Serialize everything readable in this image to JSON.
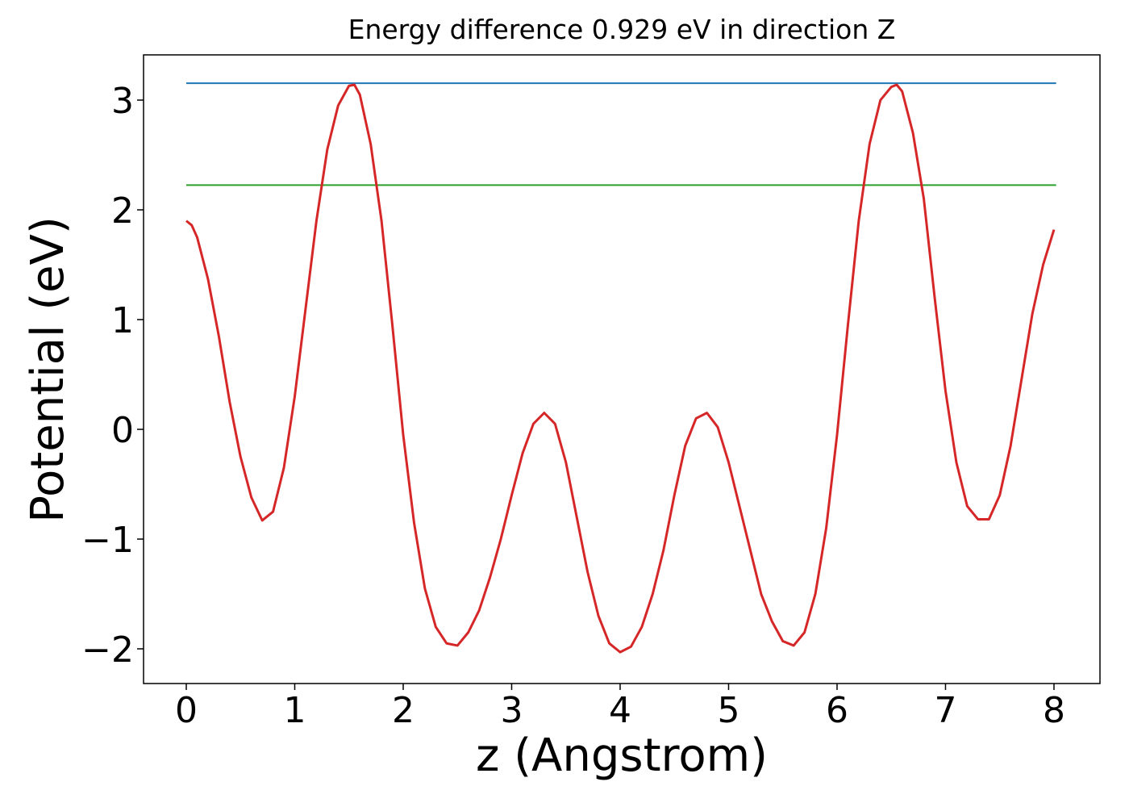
{
  "chart_data": {
    "type": "line",
    "title": "Energy difference 0.929 eV in direction Z",
    "xlabel": "z (Angstrom)",
    "ylabel": "Potential (eV)",
    "x": [
      0,
      0.05,
      0.1,
      0.2,
      0.3,
      0.4,
      0.5,
      0.6,
      0.7,
      0.8,
      0.9,
      1.0,
      1.1,
      1.2,
      1.3,
      1.4,
      1.5,
      1.55,
      1.6,
      1.7,
      1.8,
      1.9,
      2.0,
      2.1,
      2.2,
      2.3,
      2.4,
      2.5,
      2.6,
      2.7,
      2.8,
      2.9,
      3.0,
      3.1,
      3.2,
      3.3,
      3.4,
      3.5,
      3.6,
      3.7,
      3.8,
      3.9,
      4.0,
      4.1,
      4.2,
      4.3,
      4.4,
      4.5,
      4.6,
      4.7,
      4.8,
      4.9,
      5.0,
      5.1,
      5.2,
      5.3,
      5.4,
      5.5,
      5.6,
      5.7,
      5.8,
      5.9,
      6.0,
      6.1,
      6.2,
      6.3,
      6.4,
      6.5,
      6.55,
      6.6,
      6.7,
      6.8,
      6.9,
      7.0,
      7.1,
      7.2,
      7.3,
      7.4,
      7.5,
      7.6,
      7.7,
      7.8,
      7.9,
      8.0
    ],
    "series": [
      {
        "color": "#d62728",
        "values": [
          1.9,
          1.86,
          1.75,
          1.37,
          0.85,
          0.25,
          -0.25,
          -0.62,
          -0.83,
          -0.75,
          -0.35,
          0.3,
          1.1,
          1.9,
          2.55,
          2.95,
          3.13,
          3.14,
          3.05,
          2.6,
          1.9,
          0.95,
          -0.05,
          -0.85,
          -1.45,
          -1.8,
          -1.95,
          -1.97,
          -1.85,
          -1.65,
          -1.35,
          -1.0,
          -0.6,
          -0.22,
          0.05,
          0.15,
          0.05,
          -0.3,
          -0.8,
          -1.3,
          -1.7,
          -1.95,
          -2.03,
          -1.98,
          -1.8,
          -1.5,
          -1.1,
          -0.6,
          -0.15,
          0.1,
          0.15,
          0.02,
          -0.3,
          -0.7,
          -1.1,
          -1.5,
          -1.75,
          -1.93,
          -1.97,
          -1.85,
          -1.5,
          -0.9,
          -0.05,
          0.95,
          1.9,
          2.6,
          3.0,
          3.12,
          3.14,
          3.08,
          2.7,
          2.1,
          1.2,
          0.35,
          -0.3,
          -0.7,
          -0.82,
          -0.82,
          -0.6,
          -0.15,
          0.45,
          1.05,
          1.5,
          1.82
        ]
      }
    ],
    "hlines": [
      {
        "color": "#1f77b4",
        "y": 3.154,
        "x": [
          0,
          8.02
        ]
      },
      {
        "color": "#2ca02c",
        "y": 2.225,
        "x": [
          0,
          8.02
        ]
      }
    ],
    "xlim": [
      -0.394,
      8.424
    ],
    "ylim": [
      -2.316,
      3.412
    ],
    "xticks": [
      0,
      1,
      2,
      3,
      4,
      5,
      6,
      7,
      8
    ],
    "yticks": [
      {
        "value": -2,
        "label": "−2"
      },
      {
        "value": -1,
        "label": "−1"
      },
      0,
      1,
      2,
      3
    ]
  }
}
